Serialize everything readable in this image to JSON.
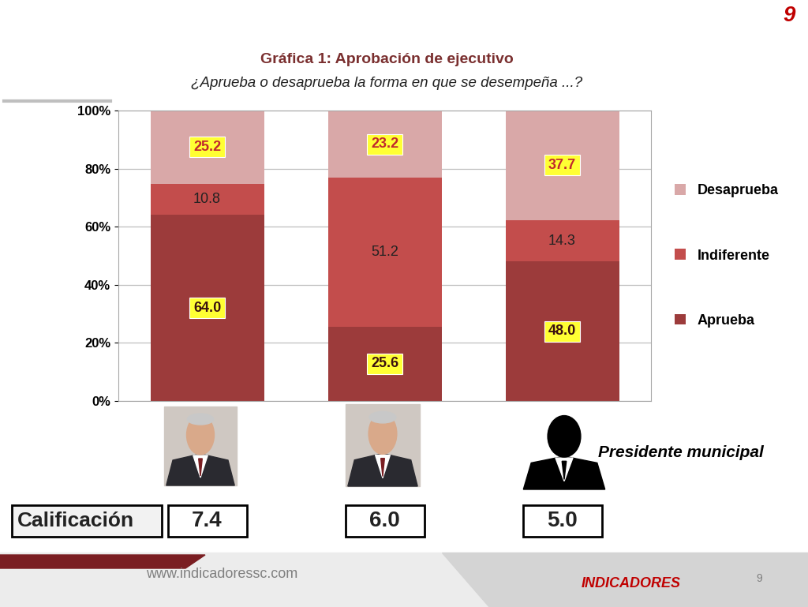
{
  "chart_data": {
    "type": "bar",
    "stacked": true,
    "title": "Gráfica 1: Aprobación de ejecutivo",
    "subtitle": "¿Aprueba o desaprueba la forma en que se desempeña ...?",
    "categories": [
      null,
      null,
      "Presidente municipal"
    ],
    "series": [
      {
        "name": "Aprueba",
        "color": "#9c3b3b",
        "values": [
          64.0,
          25.6,
          48.0
        ]
      },
      {
        "name": "Indiferente",
        "color": "#c34d4c",
        "values": [
          10.8,
          51.2,
          14.3
        ]
      },
      {
        "name": "Desaprueba",
        "color": "#d9a8a8",
        "values": [
          25.2,
          23.2,
          37.7
        ]
      }
    ],
    "ylim": [
      0,
      100
    ],
    "yticks": [
      {
        "value": 0,
        "label": "0%"
      },
      {
        "value": 20,
        "label": "20%"
      },
      {
        "value": 40,
        "label": "40%"
      },
      {
        "value": 60,
        "label": "60%"
      },
      {
        "value": 80,
        "label": "80%"
      },
      {
        "value": 100,
        "label": "100%"
      }
    ],
    "grid": true,
    "legend": "center left",
    "data_labels": true,
    "rating_label": "Calificación",
    "ratings": [
      7.4,
      6.0,
      5.0
    ],
    "page_number": "9",
    "footer_url": "www.indicadoressc.com",
    "logo": "INDICADORES"
  }
}
